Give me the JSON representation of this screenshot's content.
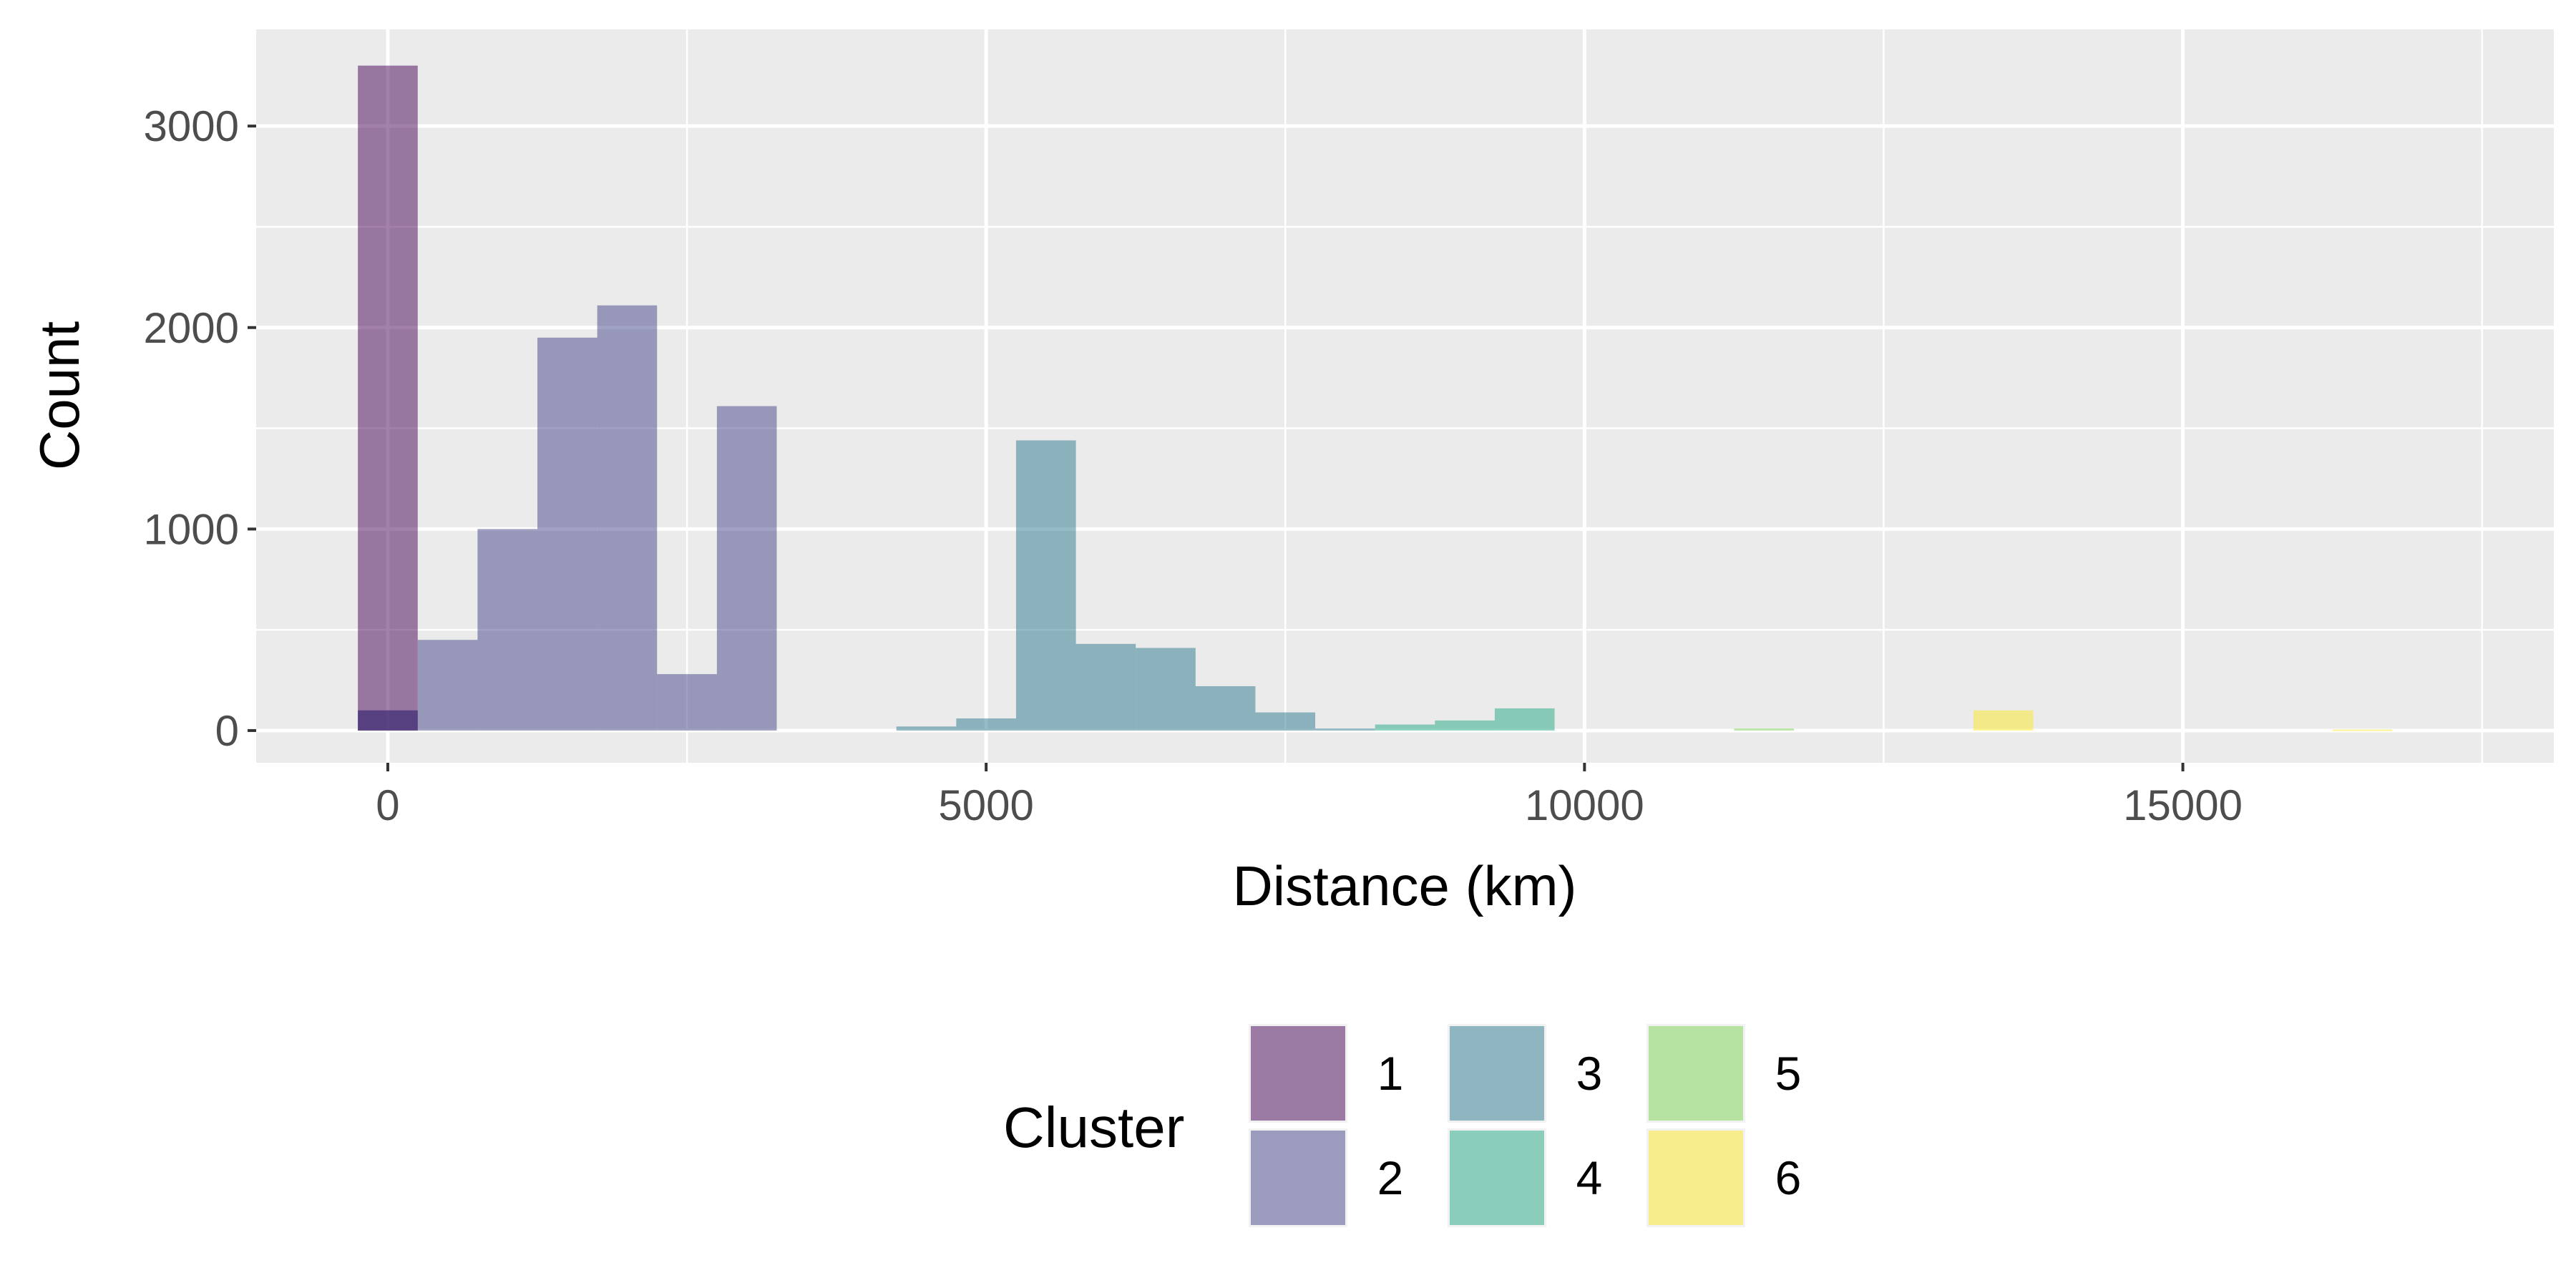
{
  "chart_data": {
    "type": "bar",
    "title": "",
    "xlabel": "Distance (km)",
    "ylabel": "Count",
    "xlim": [
      -1100,
      18100
    ],
    "ylim": [
      -160,
      3480
    ],
    "x_ticks": [
      0,
      5000,
      10000,
      15000
    ],
    "x_tick_labels": [
      "0",
      "5000",
      "10000",
      "15000"
    ],
    "y_ticks": [
      0,
      1000,
      2000,
      3000
    ],
    "y_tick_labels": [
      "0",
      "1000",
      "2000",
      "3000"
    ],
    "bin_width": 500,
    "grid": true,
    "legend": {
      "title": "Cluster",
      "position": "bottom"
    },
    "series": [
      {
        "name": "1",
        "color": "#440154",
        "bins": [
          [
            0,
            3300
          ],
          [
            0,
            100
          ]
        ]
      },
      {
        "name": "2",
        "color": "#414487",
        "bins": [
          [
            500,
            450
          ],
          [
            1000,
            1000
          ],
          [
            1500,
            1950
          ],
          [
            2000,
            2110
          ],
          [
            2500,
            280
          ],
          [
            3000,
            1610
          ],
          [
            0,
            100
          ]
        ]
      },
      {
        "name": "3",
        "color": "#2A788E",
        "bins": [
          [
            4500,
            20
          ],
          [
            5000,
            60
          ],
          [
            5500,
            1440
          ],
          [
            6000,
            430
          ],
          [
            6500,
            410
          ],
          [
            7000,
            220
          ],
          [
            7500,
            90
          ],
          [
            8000,
            10
          ]
        ]
      },
      {
        "name": "4",
        "color": "#22A884",
        "bins": [
          [
            8500,
            30
          ],
          [
            9000,
            50
          ],
          [
            9500,
            110
          ]
        ]
      },
      {
        "name": "5",
        "color": "#7AD151",
        "bins": [
          [
            11500,
            10
          ]
        ]
      },
      {
        "name": "6",
        "color": "#FDE725",
        "bins": [
          [
            13500,
            100
          ],
          [
            16500,
            5
          ]
        ]
      }
    ]
  }
}
